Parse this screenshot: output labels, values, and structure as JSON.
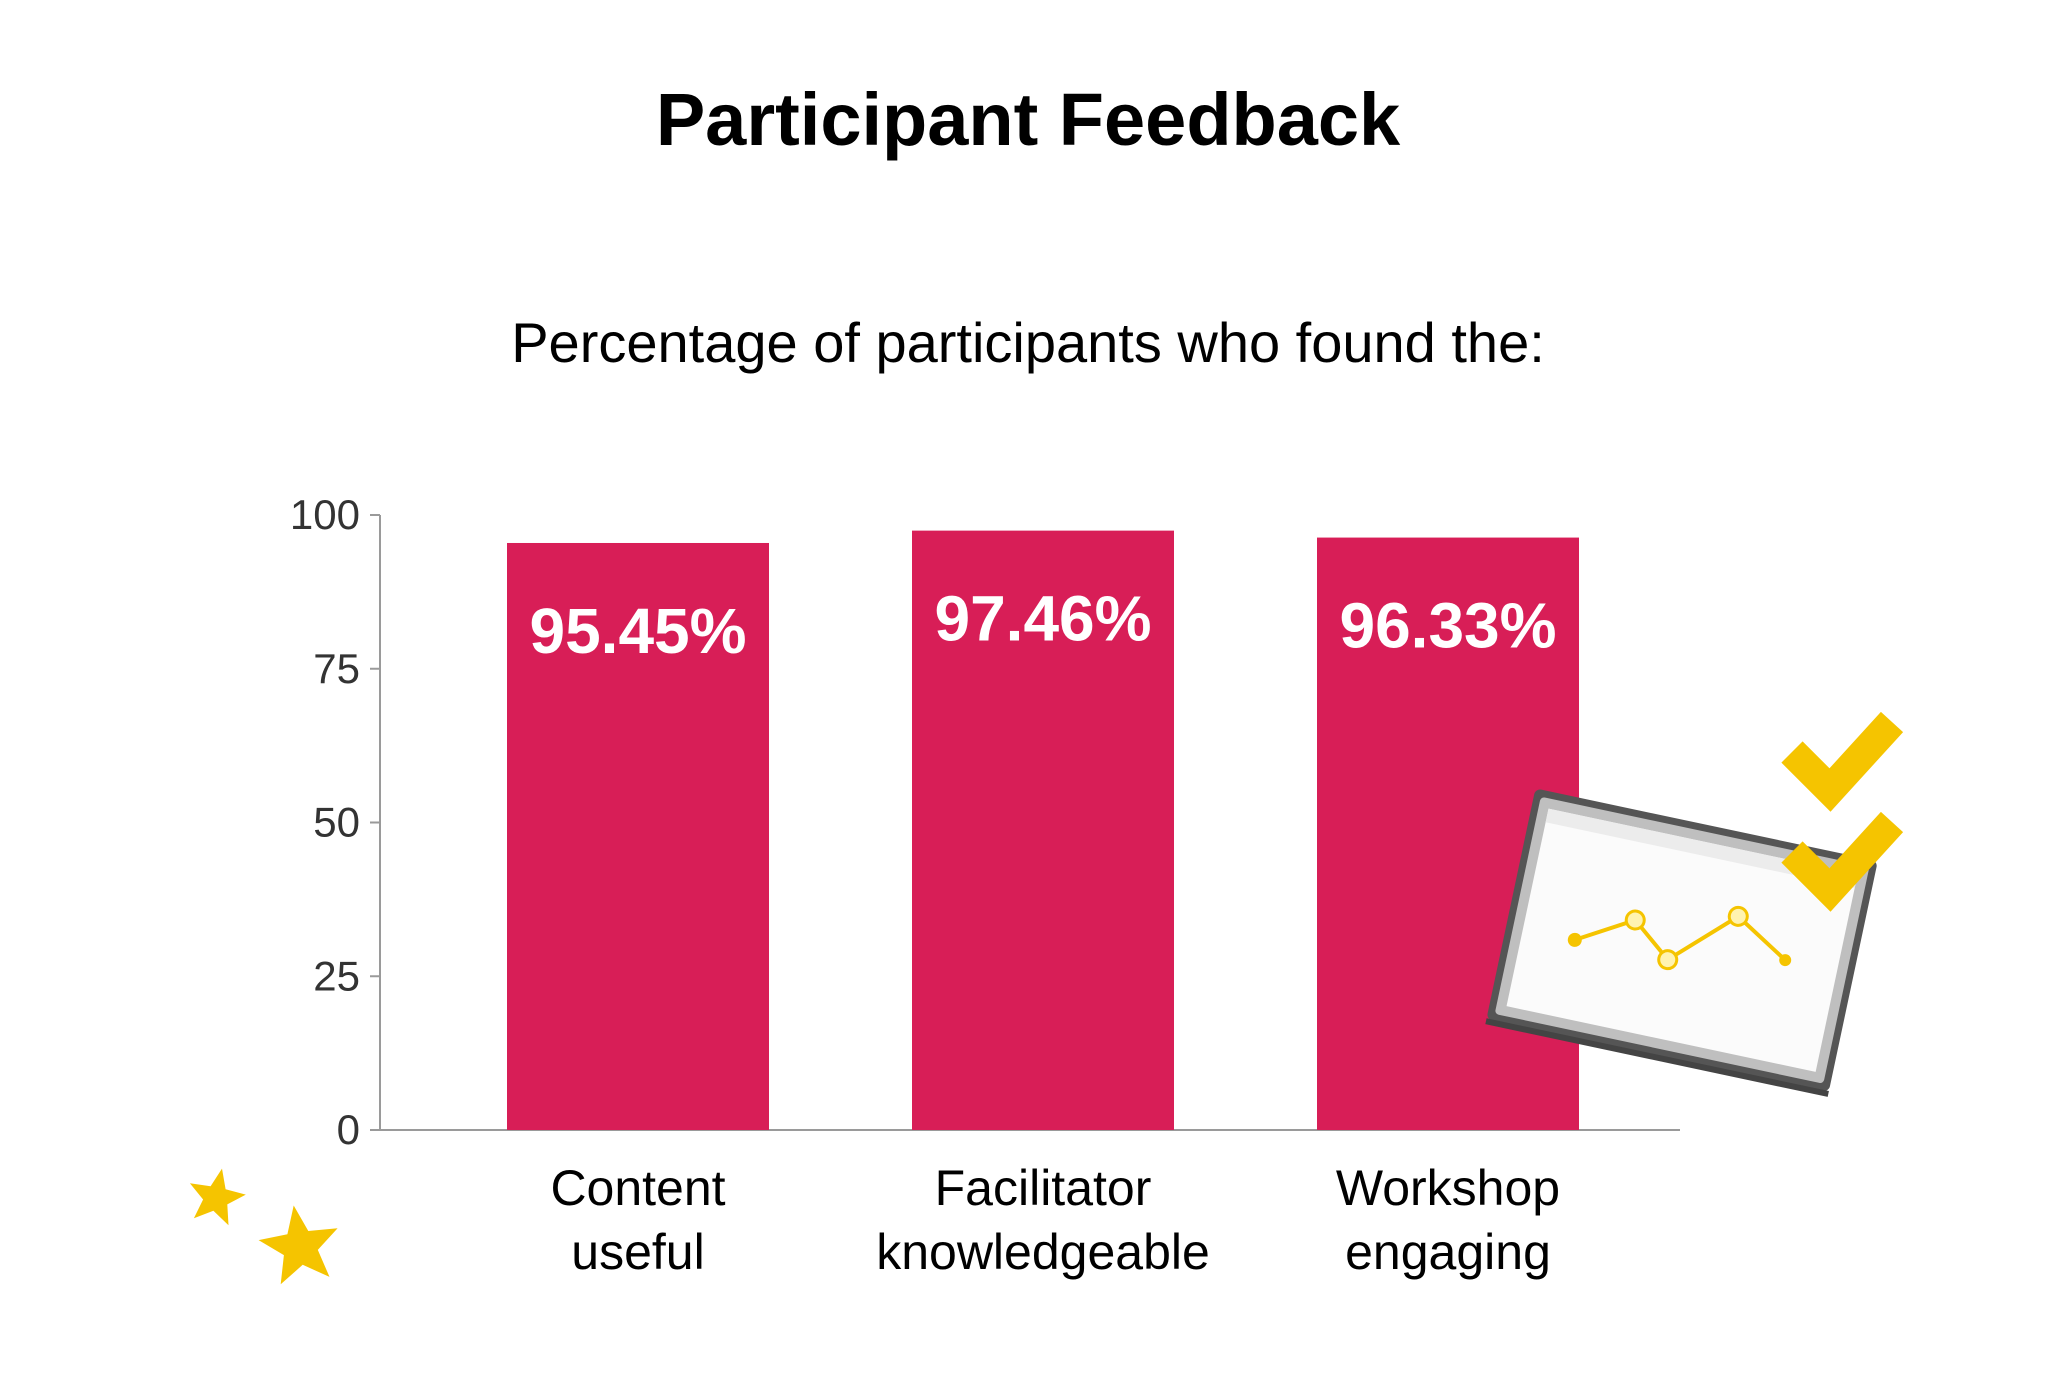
{
  "chart_data": {
    "type": "bar",
    "title": "Participant Feedback",
    "subtitle": "Percentage of participants who found the:",
    "categories": [
      [
        "Content",
        "useful"
      ],
      [
        "Facilitator",
        "knowledgeable"
      ],
      [
        "Workshop",
        "engaging"
      ]
    ],
    "values": [
      95.45,
      97.46,
      96.33
    ],
    "value_labels": [
      "95.45%",
      "97.46%",
      "96.33%"
    ],
    "ylim": [
      0,
      100
    ],
    "yticks": [
      0,
      25,
      50,
      75,
      100
    ],
    "grid": false,
    "legend": "none"
  },
  "colors": {
    "bar": "#d81e57",
    "accent": "#f5c400",
    "axis": "#9a9a9a",
    "text": "#000000",
    "tick_text": "#333333"
  },
  "decorations": {
    "stars": "star-icon",
    "checkmarks": "check-icon",
    "whiteboard": "whiteboard-chart-icon"
  }
}
